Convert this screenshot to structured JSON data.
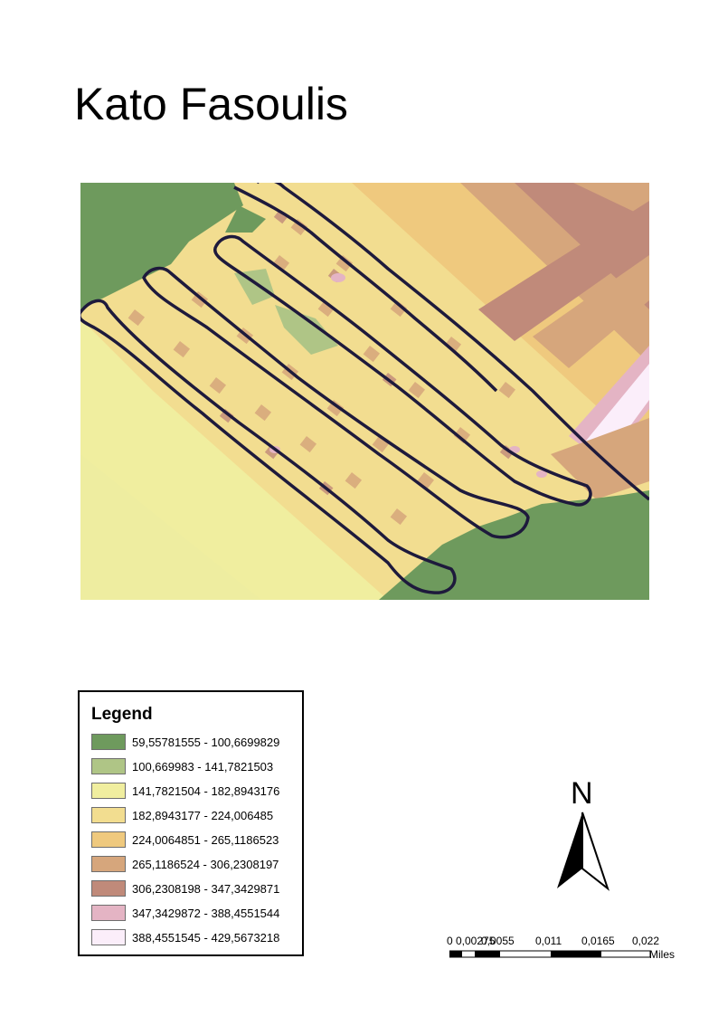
{
  "title": "Kato Fasoulis",
  "legend": {
    "title": "Legend",
    "items": [
      {
        "label": "59,55781555 - 100,6699829",
        "color": "#6e9a5d"
      },
      {
        "label": "100,669983 - 141,7821503",
        "color": "#afc586"
      },
      {
        "label": "141,7821504 - 182,8943176",
        "color": "#f0ee9f"
      },
      {
        "label": "182,8943177 - 224,006485",
        "color": "#f2dd90"
      },
      {
        "label": "224,0064851 - 265,1186523",
        "color": "#efc97e"
      },
      {
        "label": "265,1186524 - 306,2308197",
        "color": "#d6a67c"
      },
      {
        "label": "306,2308198 - 347,3429871",
        "color": "#c08a7a"
      },
      {
        "label": "347,3429872 - 388,4551544",
        "color": "#e4b4c4"
      },
      {
        "label": "388,4551545 - 429,5673218",
        "color": "#fbeefa"
      }
    ]
  },
  "north_arrow": {
    "letter": "N",
    "icon": "north-arrow-icon"
  },
  "scale_bar": {
    "labels": [
      "0",
      "0,00275",
      "0,0055",
      "0,011",
      "0,0165",
      "0,022"
    ],
    "unit": "Miles"
  },
  "track_color": "#1e1a3c"
}
